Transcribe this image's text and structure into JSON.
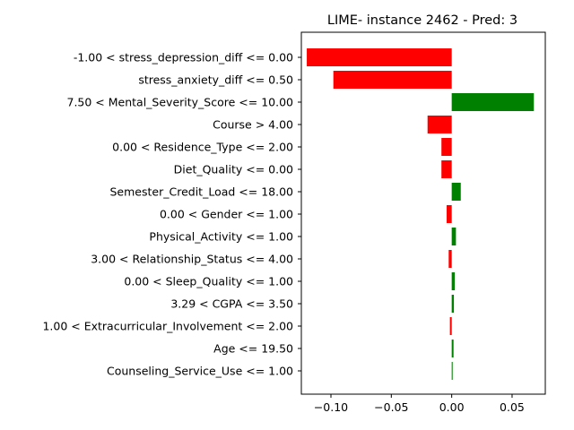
{
  "chart_data": {
    "type": "bar",
    "orientation": "horizontal",
    "title": "LIME- instance 2462 - Pred: 3",
    "xlabel": "",
    "ylabel": "",
    "xlim": [
      -0.1245,
      0.0775
    ],
    "xticks": [
      -0.1,
      -0.05,
      0.0,
      0.05
    ],
    "xtick_labels": [
      "−0.10",
      "−0.05",
      "0.00",
      "0.05"
    ],
    "grid": false,
    "positive_color": "#008000",
    "negative_color": "#ff0000",
    "categories": [
      "-1.00 < stress_depression_diff <= 0.00",
      "stress_anxiety_diff <= 0.50",
      "7.50 < Mental_Severity_Score <= 10.00",
      "Course > 4.00",
      "0.00 < Residence_Type <= 2.00",
      "Diet_Quality <= 0.00",
      "Semester_Credit_Load <= 18.00",
      "0.00 < Gender <= 1.00",
      "Physical_Activity <= 1.00",
      "3.00 < Relationship_Status <= 4.00",
      "0.00 < Sleep_Quality <= 1.00",
      "3.29 < CGPA <= 3.50",
      "1.00 < Extracurricular_Involvement <= 2.00",
      "Age <= 19.50",
      "Counseling_Service_Use <= 1.00"
    ],
    "values": [
      -0.12,
      -0.098,
      0.068,
      -0.02,
      -0.0085,
      -0.0085,
      0.0075,
      -0.0042,
      0.0035,
      -0.0025,
      0.0025,
      0.0018,
      -0.0015,
      0.0015,
      0.0008
    ]
  }
}
